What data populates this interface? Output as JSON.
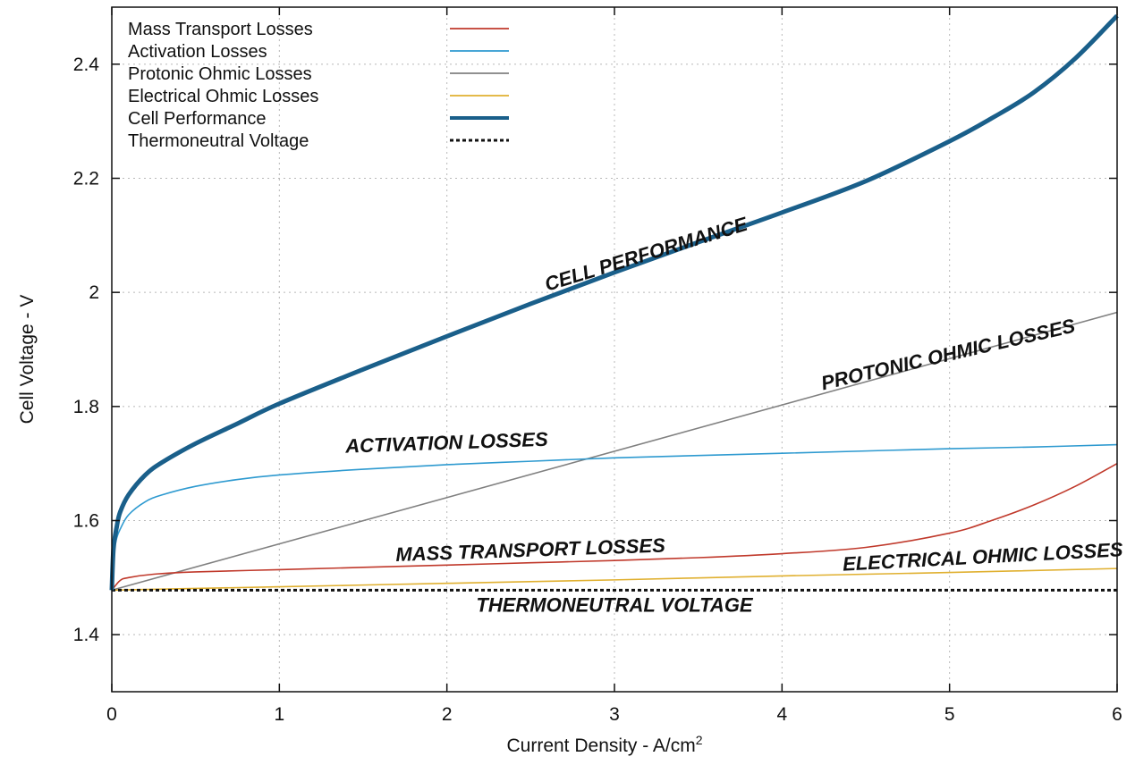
{
  "chart_data": {
    "type": "line",
    "title": "",
    "xlabel": "Current Density - A/cm",
    "xlabel_sup": "2",
    "ylabel": "Cell Voltage - V",
    "xlim": [
      0,
      6
    ],
    "ylim": [
      1.3,
      2.5
    ],
    "x_ticks": [
      0,
      1,
      2,
      3,
      4,
      5,
      6
    ],
    "y_ticks": [
      1.4,
      1.6,
      1.8,
      2.0,
      2.2,
      2.4
    ],
    "x_tick_labels": [
      "0",
      "1",
      "2",
      "3",
      "4",
      "5",
      "6"
    ],
    "y_tick_labels": [
      "1.4",
      "1.6",
      "1.8",
      "2",
      "2.2",
      "2.4"
    ],
    "grid": true,
    "legend_position": "top-left",
    "series": [
      {
        "name": "Mass Transport Losses",
        "color": "#c0392b",
        "x": [
          0,
          0.05,
          0.1,
          0.25,
          0.5,
          1,
          1.5,
          2,
          2.5,
          3,
          3.5,
          4,
          4.5,
          5,
          5.25,
          5.5,
          5.75,
          6
        ],
        "y": [
          1.478,
          1.495,
          1.5,
          1.506,
          1.51,
          1.514,
          1.518,
          1.522,
          1.526,
          1.53,
          1.535,
          1.542,
          1.553,
          1.578,
          1.6,
          1.627,
          1.66,
          1.7
        ]
      },
      {
        "name": "Activation Losses",
        "color": "#2e9ad0",
        "x": [
          0,
          0.01,
          0.03,
          0.05,
          0.1,
          0.2,
          0.3,
          0.5,
          0.75,
          1,
          1.5,
          2,
          2.5,
          3,
          3.5,
          4,
          4.5,
          5,
          5.5,
          6
        ],
        "y": [
          1.478,
          1.54,
          1.57,
          1.585,
          1.61,
          1.633,
          1.645,
          1.66,
          1.672,
          1.68,
          1.69,
          1.698,
          1.704,
          1.71,
          1.714,
          1.718,
          1.722,
          1.726,
          1.729,
          1.733
        ]
      },
      {
        "name": "Protonic Ohmic Losses",
        "color": "#808080",
        "x": [
          0,
          6
        ],
        "y": [
          1.478,
          1.965
        ]
      },
      {
        "name": "Electrical Ohmic Losses",
        "color": "#e0b030",
        "x": [
          0,
          1,
          2,
          3,
          4,
          5,
          6
        ],
        "y": [
          1.478,
          1.484,
          1.49,
          1.496,
          1.503,
          1.509,
          1.516
        ]
      },
      {
        "name": "Cell Performance",
        "color": "#1a5f8a",
        "x": [
          0,
          0.01,
          0.03,
          0.05,
          0.1,
          0.2,
          0.3,
          0.5,
          0.75,
          1,
          1.5,
          2,
          2.5,
          3,
          3.5,
          4,
          4.5,
          5,
          5.25,
          5.5,
          5.75,
          6
        ],
        "y": [
          1.478,
          1.55,
          1.59,
          1.615,
          1.645,
          1.68,
          1.702,
          1.735,
          1.77,
          1.805,
          1.865,
          1.923,
          1.98,
          2.035,
          2.088,
          2.14,
          2.195,
          2.265,
          2.305,
          2.35,
          2.41,
          2.485
        ]
      },
      {
        "name": "Thermoneutral Voltage",
        "color": "#111111",
        "dashed": true,
        "x": [
          0,
          6
        ],
        "y": [
          1.478,
          1.478
        ]
      }
    ],
    "annotations": [
      {
        "text": "CELL PERFORMANCE",
        "x": 3.2,
        "y": 2.056,
        "angle": -17
      },
      {
        "text": "PROTONIC OHMIC LOSSES",
        "x": 5.0,
        "y": 1.88,
        "angle": -13
      },
      {
        "text": "ACTIVATION LOSSES",
        "x": 2.0,
        "y": 1.725,
        "angle": -2
      },
      {
        "text": "MASS TRANSPORT LOSSES",
        "x": 2.5,
        "y": 1.537,
        "angle": -2
      },
      {
        "text": "ELECTRICAL OHMIC LOSSES",
        "x": 5.2,
        "y": 1.525,
        "angle": -3
      },
      {
        "text": "THERMONEUTRAL VOLTAGE",
        "x": 3.0,
        "y": 1.44,
        "angle": 0
      }
    ]
  }
}
